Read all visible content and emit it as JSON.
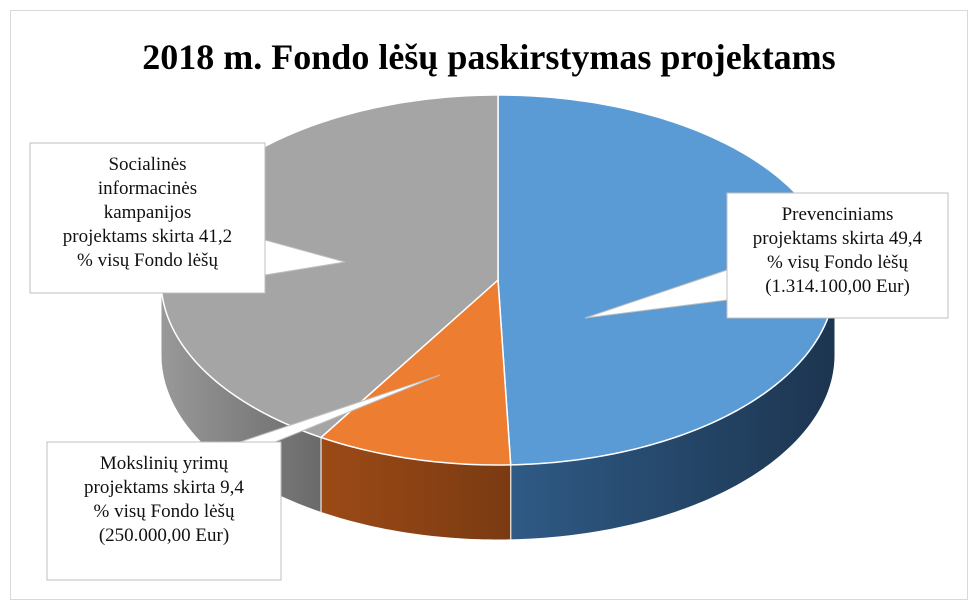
{
  "chart_data": {
    "type": "pie",
    "title": "2018 m. Fondo lėšų paskirstymas projektams",
    "values": [
      49.4,
      9.4,
      41.2
    ],
    "value_labels": [
      "Prevenciniams\nprojektams skirta 49,4\n% visų Fondo lėšų\n(1.314.100,00 Eur)",
      "Mokslinių yrimų\nprojektams skirta 9,4\n% visų Fondo lėšų\n(250.000,00 Eur)",
      "Socialinės\ninformacinės\nkampanijos\nprojektams skirta 41,2\n% visų Fondo lėšų"
    ],
    "colors": [
      "#5b9bd5",
      "#ed7d31",
      "#a5a5a5"
    ]
  }
}
